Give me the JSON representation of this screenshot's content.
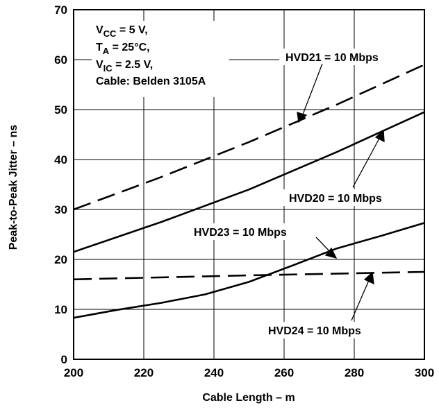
{
  "chart_data": {
    "type": "line",
    "xlabel": "Cable Length – m",
    "ylabel": "Peak-to-Peak Jitter – ns",
    "xlim": [
      200,
      300
    ],
    "ylim": [
      0,
      70
    ],
    "x_ticks": [
      "200",
      "220",
      "240",
      "260",
      "280",
      "300"
    ],
    "y_ticks": [
      "0",
      "10",
      "20",
      "30",
      "40",
      "50",
      "60",
      "70"
    ],
    "grid": true,
    "conditions": {
      "vcc": {
        "main": "V",
        "sub": "CC",
        "rest": " = 5 V,"
      },
      "ta": {
        "main": "T",
        "sub": "A",
        "rest": " = 25°C,"
      },
      "vic": {
        "main": "V",
        "sub": "IC",
        "rest": " = 2.5 V,"
      },
      "cable": "Cable: Belden 3105A"
    },
    "series": [
      {
        "name": "HVD21 = 10 Mbps",
        "style": "dashed",
        "x": [
          200,
          225,
          250,
          275,
          300
        ],
        "y": [
          30,
          36.5,
          43.5,
          51,
          59
        ]
      },
      {
        "name": "HVD20 = 10 Mbps",
        "style": "solid",
        "x": [
          200,
          225,
          250,
          275,
          300
        ],
        "y": [
          21.5,
          27.5,
          34,
          41.5,
          49.5
        ]
      },
      {
        "name": "HVD23 = 10 Mbps",
        "style": "solid",
        "x": [
          200,
          212.5,
          225,
          237.5,
          250,
          262.5,
          275,
          287.5,
          300
        ],
        "y": [
          8.3,
          9.9,
          11.3,
          13,
          15.5,
          18.8,
          22.2,
          24.7,
          27.3
        ]
      },
      {
        "name": "HVD24 = 10 Mbps",
        "style": "dashed",
        "x": [
          200,
          250,
          300
        ],
        "y": [
          16,
          16.8,
          17.5
        ]
      }
    ]
  }
}
